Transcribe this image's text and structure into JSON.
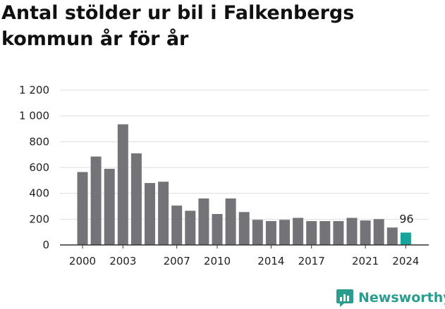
{
  "title": "Antal stölder ur bil i Falkenbergs kommun år för år",
  "brand": {
    "name": "Newsworthy",
    "color": "#2a9d8f"
  },
  "colors": {
    "bar": "#747378",
    "highlight": "#1aa39a",
    "grid": "#dddddd",
    "axis": "#333333"
  },
  "chart_data": {
    "type": "bar",
    "title": "Antal stölder ur bil i Falkenbergs kommun år för år",
    "xlabel": "",
    "ylabel": "",
    "categories": [
      "2000",
      "2001",
      "2002",
      "2003",
      "2004",
      "2005",
      "2006",
      "2007",
      "2008",
      "2009",
      "2010",
      "2011",
      "2012",
      "2013",
      "2014",
      "2015",
      "2016",
      "2017",
      "2018",
      "2019",
      "2020",
      "2021",
      "2022",
      "2023",
      "2024"
    ],
    "values": [
      565,
      685,
      590,
      935,
      710,
      480,
      490,
      305,
      265,
      360,
      240,
      360,
      255,
      195,
      185,
      195,
      210,
      185,
      185,
      185,
      210,
      190,
      200,
      135,
      96
    ],
    "x_tick_labels": [
      "2000",
      "2003",
      "2007",
      "2010",
      "2014",
      "2017",
      "2021",
      "2024"
    ],
    "y_ticks": [
      {
        "value": 0,
        "label": "0"
      },
      {
        "value": 200,
        "label": "200"
      },
      {
        "value": 400,
        "label": "400"
      },
      {
        "value": 600,
        "label": "600"
      },
      {
        "value": 800,
        "label": "800"
      },
      {
        "value": 1000,
        "label": "1 000"
      },
      {
        "value": 1200,
        "label": "1 200"
      }
    ],
    "ylim": [
      0,
      1200
    ],
    "grid": true,
    "highlight_category": "2024",
    "annotations": [
      {
        "category": "2024",
        "text": "96"
      }
    ]
  }
}
